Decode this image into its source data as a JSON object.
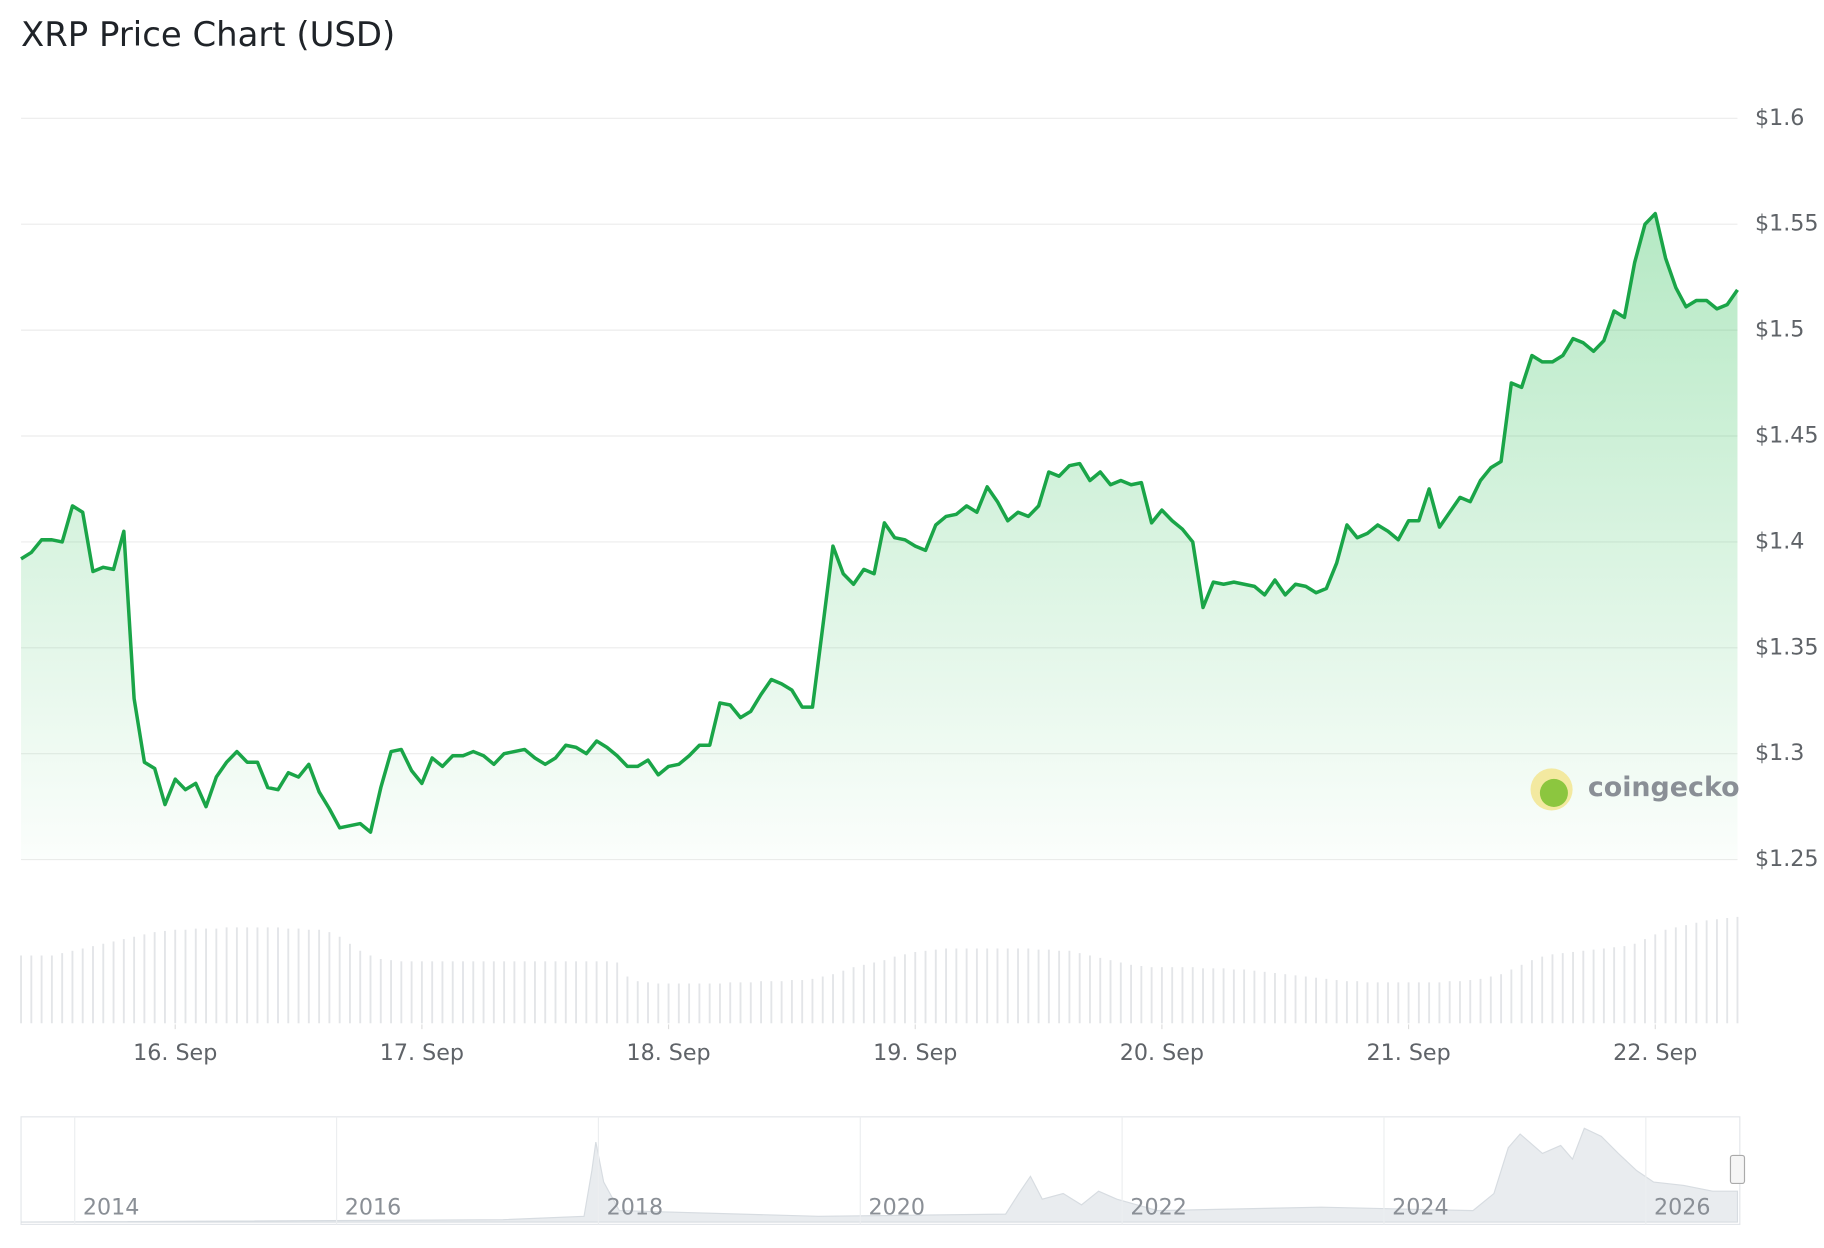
{
  "chart_data": [
    {
      "type": "line",
      "title": "XRP Price Chart (USD)",
      "color": "#1aa548",
      "values": [
        1.392,
        1.395,
        1.401,
        1.401,
        1.4,
        1.417,
        1.414,
        1.386,
        1.388,
        1.387,
        1.405,
        1.326,
        1.296,
        1.293,
        1.276,
        1.288,
        1.283,
        1.286,
        1.275,
        1.289,
        1.296,
        1.301,
        1.296,
        1.296,
        1.284,
        1.283,
        1.291,
        1.289,
        1.295,
        1.282,
        1.274,
        1.265,
        1.266,
        1.267,
        1.263,
        1.284,
        1.301,
        1.302,
        1.292,
        1.286,
        1.298,
        1.294,
        1.299,
        1.299,
        1.301,
        1.299,
        1.295,
        1.3,
        1.301,
        1.302,
        1.298,
        1.295,
        1.298,
        1.304,
        1.303,
        1.3,
        1.306,
        1.303,
        1.299,
        1.294,
        1.294,
        1.297,
        1.29,
        1.294,
        1.295,
        1.299,
        1.304,
        1.304,
        1.324,
        1.323,
        1.317,
        1.32,
        1.328,
        1.335,
        1.333,
        1.33,
        1.322,
        1.322,
        1.36,
        1.398,
        1.385,
        1.38,
        1.387,
        1.385,
        1.409,
        1.402,
        1.401,
        1.398,
        1.396,
        1.408,
        1.412,
        1.413,
        1.417,
        1.414,
        1.426,
        1.419,
        1.41,
        1.414,
        1.412,
        1.417,
        1.433,
        1.431,
        1.436,
        1.437,
        1.429,
        1.433,
        1.427,
        1.429,
        1.427,
        1.428,
        1.409,
        1.415,
        1.41,
        1.406,
        1.4,
        1.369,
        1.381,
        1.38,
        1.381,
        1.38,
        1.379,
        1.375,
        1.382,
        1.375,
        1.38,
        1.379,
        1.376,
        1.378,
        1.39,
        1.408,
        1.402,
        1.404,
        1.408,
        1.405,
        1.401,
        1.41,
        1.41,
        1.425,
        1.407,
        1.414,
        1.421,
        1.419,
        1.429,
        1.435,
        1.438,
        1.475,
        1.473,
        1.488,
        1.485,
        1.485,
        1.488,
        1.496,
        1.494,
        1.49,
        1.495,
        1.509,
        1.506,
        1.532,
        1.55,
        1.555,
        1.534,
        1.52,
        1.511,
        1.514,
        1.514,
        1.51,
        1.512,
        1.519
      ],
      "xlim": [
        0,
        167
      ],
      "xticks": [
        {
          "value": 15,
          "label": "16. Sep"
        },
        {
          "value": 39,
          "label": "17. Sep"
        },
        {
          "value": 63,
          "label": "18. Sep"
        },
        {
          "value": 87,
          "label": "19. Sep"
        },
        {
          "value": 111,
          "label": "20. Sep"
        },
        {
          "value": 135,
          "label": "21. Sep"
        },
        {
          "value": 159,
          "label": "22. Sep"
        }
      ],
      "ylim": [
        1.25,
        1.6
      ],
      "yticks": [
        {
          "value": 1.25,
          "label": "$1.25"
        },
        {
          "value": 1.3,
          "label": "$1.3"
        },
        {
          "value": 1.35,
          "label": "$1.35"
        },
        {
          "value": 1.4,
          "label": "$1.4"
        },
        {
          "value": 1.45,
          "label": "$1.45"
        },
        {
          "value": 1.5,
          "label": "$1.5"
        },
        {
          "value": 1.55,
          "label": "$1.55"
        },
        {
          "value": 1.6,
          "label": "$1.6"
        }
      ],
      "grid": true,
      "watermark": "coingecko",
      "volume": {
        "color": "#e3e5e8",
        "ylim": [
          0,
          100
        ],
        "values": [
          58,
          58,
          58,
          58,
          60,
          62,
          64,
          66,
          68,
          70,
          72,
          74,
          76,
          78,
          79,
          80,
          80,
          81,
          81,
          81,
          82,
          82,
          82,
          82,
          82,
          82,
          81,
          81,
          80,
          80,
          78,
          74,
          68,
          62,
          58,
          55,
          54,
          53,
          53,
          53,
          53,
          53,
          53,
          53,
          53,
          53,
          53,
          53,
          53,
          53,
          53,
          53,
          53,
          53,
          53,
          53,
          53,
          53,
          52,
          40,
          36,
          35,
          34,
          34,
          34,
          34,
          34,
          34,
          34,
          35,
          35,
          35,
          36,
          36,
          36,
          37,
          37,
          38,
          40,
          42,
          45,
          48,
          50,
          52,
          54,
          57,
          59,
          61,
          62,
          63,
          64,
          64,
          64,
          64,
          64,
          64,
          64,
          64,
          64,
          63,
          63,
          62,
          62,
          60,
          58,
          56,
          54,
          52,
          50,
          49,
          48,
          48,
          48,
          48,
          48,
          47,
          47,
          47,
          46,
          46,
          45,
          44,
          43,
          42,
          41,
          40,
          39,
          38,
          37,
          36,
          36,
          35,
          35,
          35,
          35,
          35,
          35,
          35,
          35,
          36,
          36,
          37,
          38,
          40,
          42,
          46,
          50,
          54,
          57,
          59,
          60,
          61,
          62,
          63,
          64,
          65,
          66,
          68,
          72,
          76,
          80,
          82,
          84,
          86,
          88,
          89,
          90,
          91
        ]
      }
    },
    {
      "type": "area",
      "color": "#e9ecef",
      "x": [
        2013.59,
        2017.27,
        2017.89,
        2017.95,
        2017.98,
        2018.04,
        2018.16,
        2019.68,
        2021.11,
        2021.21,
        2021.3,
        2021.39,
        2021.55,
        2021.69,
        2021.82,
        2021.96,
        2022.27,
        2023.52,
        2024.68,
        2024.84,
        2024.95,
        2025.04,
        2025.21,
        2025.35,
        2025.44,
        2025.53,
        2025.66,
        2025.79,
        2025.93,
        2026.06,
        2026.29,
        2026.51,
        2026.7
      ],
      "values": [
        0,
        2,
        5,
        45,
        70,
        35,
        10,
        5,
        7,
        25,
        40,
        20,
        25,
        15,
        27,
        20,
        10,
        13,
        10,
        25,
        65,
        77,
        60,
        67,
        55,
        82,
        75,
        60,
        45,
        35,
        32,
        27,
        27
      ],
      "xlim": [
        2013.59,
        2026.7
      ],
      "ylim": [
        0,
        90
      ],
      "xticks": [
        2014,
        2016,
        2018,
        2020,
        2022,
        2024,
        2026
      ]
    }
  ]
}
